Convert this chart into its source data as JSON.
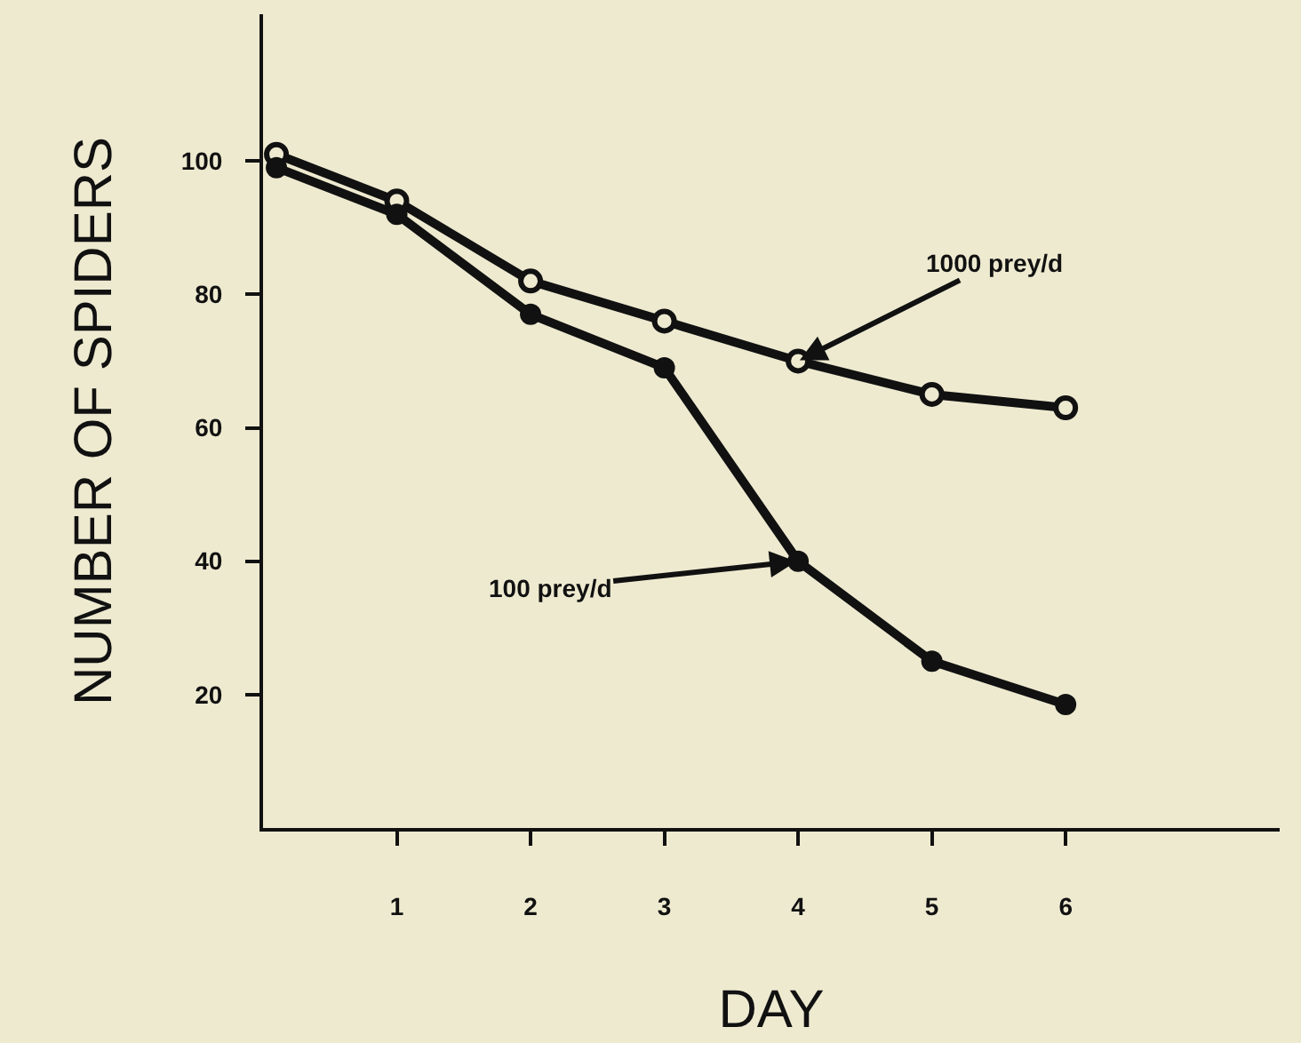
{
  "chart_data": {
    "type": "line",
    "xlabel": "DAY",
    "ylabel": "NUMBER OF SPIDERS",
    "xlim": [
      0,
      7.6
    ],
    "xticks": [
      1,
      2,
      3,
      4,
      5,
      6
    ],
    "ylim": [
      0,
      122
    ],
    "yticks": [
      20,
      40,
      60,
      80,
      100
    ],
    "series": [
      {
        "color": "#111111",
        "marker": "circle-open",
        "x": [
          0.1,
          1,
          2,
          3,
          4,
          5,
          6
        ],
        "values": [
          101,
          94,
          82,
          76,
          70,
          65,
          63
        ]
      },
      {
        "color": "#111111",
        "marker": "circle",
        "x": [
          0.1,
          1,
          2,
          3,
          4,
          5,
          6
        ],
        "values": [
          99,
          92,
          77,
          69,
          40,
          25,
          18.5
        ]
      }
    ],
    "annotations": [
      {
        "text": "1000 prey/d",
        "x": 4,
        "y": 70
      },
      {
        "text": "100 prey/d",
        "x": 4,
        "y": 40
      }
    ],
    "grid": false,
    "legend": false,
    "line_style": "solid"
  }
}
